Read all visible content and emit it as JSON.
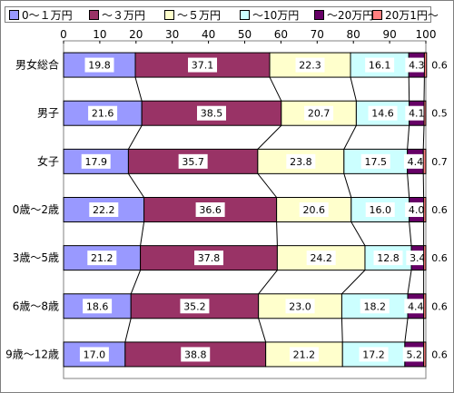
{
  "chart_data": {
    "type": "bar",
    "stacked": true,
    "orientation": "horizontal",
    "percent": true,
    "x_ticks": [
      "0",
      "10",
      "20",
      "30",
      "40",
      "50",
      "60",
      "70",
      "80",
      "90",
      "100"
    ],
    "xlim": [
      0,
      100
    ],
    "legend_position": "top",
    "series_lines": true,
    "categories": [
      "男女総合",
      "男子",
      "女子",
      "0歳～2歳",
      "3歳～5歳",
      "6歳～8歳",
      "9歳～12歳"
    ],
    "series": [
      {
        "name": "0～１万円",
        "color": "#9999ff",
        "values": [
          19.8,
          21.6,
          17.9,
          22.2,
          21.2,
          18.6,
          17.0
        ],
        "labels": [
          "19.8",
          "21.6",
          "17.9",
          "22.2",
          "21.2",
          "18.6",
          "17.0"
        ]
      },
      {
        "name": "～３万円",
        "color": "#993366",
        "values": [
          37.1,
          38.5,
          35.7,
          36.6,
          37.8,
          35.2,
          38.8
        ],
        "labels": [
          "37.1",
          "38.5",
          "35.7",
          "36.6",
          "37.8",
          "35.2",
          "38.8"
        ]
      },
      {
        "name": "～５万円",
        "color": "#ffffcc",
        "values": [
          22.3,
          20.7,
          23.8,
          20.6,
          24.2,
          23.0,
          21.2
        ],
        "labels": [
          "22.3",
          "20.7",
          "23.8",
          "20.6",
          "24.2",
          "23.0",
          "21.2"
        ]
      },
      {
        "name": "～10万円",
        "color": "#ccffff",
        "values": [
          16.1,
          14.6,
          17.5,
          16.0,
          12.8,
          18.2,
          17.2
        ],
        "labels": [
          "16.1",
          "14.6",
          "17.5",
          "16.0",
          "12.8",
          "18.2",
          "17.2"
        ]
      },
      {
        "name": "～20万円",
        "color": "#660066",
        "values": [
          4.3,
          4.1,
          4.4,
          4.0,
          3.4,
          4.4,
          5.2
        ],
        "labels": [
          "4.3",
          "4.1",
          "4.4",
          "4.0",
          "3.4",
          "4.4",
          "5.2"
        ]
      },
      {
        "name": "20万1円～",
        "color": "#ff8080",
        "values": [
          0.6,
          0.5,
          0.7,
          0.6,
          0.6,
          0.6,
          0.6
        ],
        "labels": [
          "0.6",
          "0.5",
          "0.7",
          "0.6",
          "0.6",
          "0.6",
          "0.6"
        ]
      }
    ]
  }
}
